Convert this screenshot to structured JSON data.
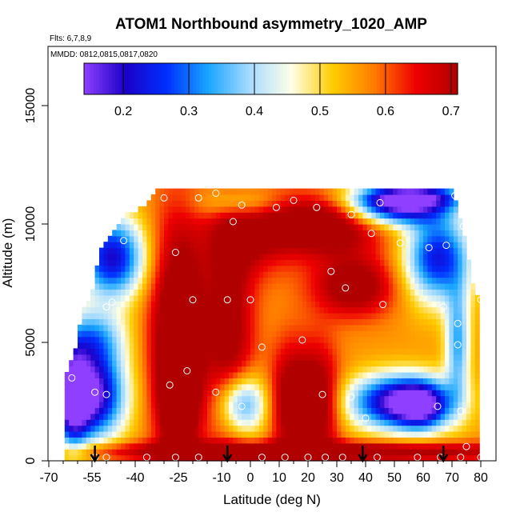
{
  "chart_data": {
    "type": "heatmap",
    "title": "ATOM1 Northbound asymmetry_1020_AMP",
    "flights_note": "Flts: 6,7,8,9",
    "dates_note": "MMDD: 0812,0815,0817,0820",
    "xlabel": "Latitude (deg N)",
    "ylabel": "Altitude (m)",
    "xlim": [
      -70,
      80
    ],
    "ylim": [
      0,
      17500
    ],
    "x_ticks": [
      "-70",
      "-55",
      "-40",
      "-25",
      "-10",
      "0",
      "10",
      "20",
      "30",
      "40",
      "50",
      "60",
      "70",
      "80"
    ],
    "x_tick_values": [
      -70,
      -55,
      -40,
      -25,
      -10,
      0,
      10,
      20,
      30,
      40,
      50,
      60,
      70,
      80
    ],
    "y_ticks": [
      "0",
      "5000",
      "10000",
      "15000"
    ],
    "y_tick_values": [
      0,
      5000,
      10000,
      15000
    ],
    "colorbar": {
      "min": 0.14,
      "max": 0.71,
      "ticks": [
        "0.2",
        "0.3",
        "0.4",
        "0.5",
        "0.6",
        "0.7"
      ],
      "tick_values": [
        0.2,
        0.3,
        0.4,
        0.5,
        0.6,
        0.7
      ],
      "colors": [
        "#8f3fff",
        "#1a00c8",
        "#0030ff",
        "#1aa6ff",
        "#a8dcff",
        "#ffffe8",
        "#ffcc00",
        "#ff7a00",
        "#ee0000",
        "#b10000"
      ]
    },
    "coverage_top_altitude": [
      {
        "lat": -65,
        "alt": 3200
      },
      {
        "lat": -61,
        "alt": 4500
      },
      {
        "lat": -58,
        "alt": 6300
      },
      {
        "lat": -55,
        "alt": 7000
      },
      {
        "lat": -52,
        "alt": 8800
      },
      {
        "lat": -48,
        "alt": 9600
      },
      {
        "lat": -44,
        "alt": 10200
      },
      {
        "lat": -38,
        "alt": 10600
      },
      {
        "lat": -32,
        "alt": 11300
      },
      {
        "lat": 70,
        "alt": 11300
      },
      {
        "lat": 72,
        "alt": 10500
      },
      {
        "lat": 74,
        "alt": 9500
      },
      {
        "lat": 76,
        "alt": 8300
      },
      {
        "lat": 78,
        "alt": 7000
      },
      {
        "lat": 80,
        "alt": 6500
      }
    ],
    "blobs": [
      {
        "lat": -25,
        "alt": 5500,
        "slat": 7,
        "salt": 3500,
        "v": 0.24
      },
      {
        "lat": -25,
        "alt": 2800,
        "slat": 4,
        "salt": 1600,
        "v": 0.25
      },
      {
        "lat": -7,
        "alt": 5500,
        "slat": 6,
        "salt": 3500,
        "v": 0.17
      },
      {
        "lat": 0,
        "alt": 9800,
        "slat": 10,
        "salt": 1300,
        "v": 0.14
      },
      {
        "lat": 25,
        "alt": 10000,
        "slat": 14,
        "salt": 900,
        "v": 0.24
      },
      {
        "lat": 36,
        "alt": 7400,
        "slat": 10,
        "salt": 900,
        "v": 0.2
      },
      {
        "lat": 24,
        "alt": 2500,
        "slat": 5,
        "salt": 1700,
        "v": 0.2
      },
      {
        "lat": 14,
        "alt": 2500,
        "slat": 5,
        "salt": 1700,
        "v": 0.2
      },
      {
        "lat": 20,
        "alt": 400,
        "slat": 60,
        "salt": 300,
        "v": 0.22
      },
      {
        "lat": -55,
        "alt": 2800,
        "slat": 8,
        "salt": 1300,
        "v": -0.42
      },
      {
        "lat": -62,
        "alt": 2600,
        "slat": 4,
        "salt": 1500,
        "v": -0.3
      },
      {
        "lat": -48,
        "alt": 8600,
        "slat": 8,
        "salt": 1200,
        "v": -0.35
      },
      {
        "lat": -3,
        "alt": 2400,
        "slat": 6,
        "salt": 900,
        "v": -0.27
      },
      {
        "lat": 52,
        "alt": 2500,
        "slat": 12,
        "salt": 800,
        "v": -0.42
      },
      {
        "lat": 60,
        "alt": 2300,
        "slat": 6,
        "salt": 700,
        "v": -0.2
      },
      {
        "lat": 65,
        "alt": 8600,
        "slat": 8,
        "salt": 1300,
        "v": -0.33
      },
      {
        "lat": 50,
        "alt": 10600,
        "slat": 12,
        "salt": 500,
        "v": -0.3
      },
      {
        "lat": 55,
        "alt": 11200,
        "slat": 14,
        "salt": 400,
        "v": -0.35
      },
      {
        "lat": 72,
        "alt": 5000,
        "slat": 3,
        "salt": 1600,
        "v": -0.22
      },
      {
        "lat": -3,
        "alt": 10900,
        "slat": 10,
        "salt": 500,
        "v": -0.15
      },
      {
        "lat": -55,
        "alt": 5200,
        "slat": 8,
        "salt": 900,
        "v": -0.2
      }
    ],
    "sample_points": [
      {
        "lat": -66,
        "alt": 3200
      },
      {
        "lat": -62,
        "alt": 3500
      },
      {
        "lat": -54,
        "alt": 2900
      },
      {
        "lat": -50,
        "alt": 2800
      },
      {
        "lat": -28,
        "alt": 3200
      },
      {
        "lat": -22,
        "alt": 3800
      },
      {
        "lat": -12,
        "alt": 2900
      },
      {
        "lat": 4,
        "alt": 4800
      },
      {
        "lat": 18,
        "alt": 5100
      },
      {
        "lat": 25,
        "alt": 2800
      },
      {
        "lat": 35,
        "alt": 2700
      },
      {
        "lat": 40,
        "alt": 1800
      },
      {
        "lat": 65,
        "alt": 2300
      },
      {
        "lat": 72,
        "alt": 4900
      },
      {
        "lat": 73,
        "alt": 2100
      },
      {
        "lat": -55,
        "alt": 8700
      },
      {
        "lat": -44,
        "alt": 9300
      },
      {
        "lat": -26,
        "alt": 8800
      },
      {
        "lat": -20,
        "alt": 6800
      },
      {
        "lat": -8,
        "alt": 6800
      },
      {
        "lat": 0,
        "alt": 6800
      },
      {
        "lat": 28,
        "alt": 8000
      },
      {
        "lat": 33,
        "alt": 7300
      },
      {
        "lat": 46,
        "alt": 6600
      },
      {
        "lat": 67,
        "alt": 6500
      },
      {
        "lat": 72,
        "alt": 5800
      },
      {
        "lat": 80,
        "alt": 6800
      },
      {
        "lat": -48,
        "alt": 6700
      },
      {
        "lat": -50,
        "alt": 6500
      },
      {
        "lat": -30,
        "alt": 11100
      },
      {
        "lat": -18,
        "alt": 11100
      },
      {
        "lat": -12,
        "alt": 11300
      },
      {
        "lat": -6,
        "alt": 10100
      },
      {
        "lat": 9,
        "alt": 10700
      },
      {
        "lat": 15,
        "alt": 11000
      },
      {
        "lat": 23,
        "alt": 10700
      },
      {
        "lat": 35,
        "alt": 10400
      },
      {
        "lat": 42,
        "alt": 9600
      },
      {
        "lat": 52,
        "alt": 9200
      },
      {
        "lat": 62,
        "alt": 9000
      },
      {
        "lat": 68,
        "alt": 9100
      },
      {
        "lat": 71,
        "alt": 11200
      },
      {
        "lat": 74,
        "alt": 9900
      },
      {
        "lat": 45,
        "alt": 10900
      },
      {
        "lat": -3,
        "alt": 2300
      },
      {
        "lat": -68,
        "alt": 150
      },
      {
        "lat": -54,
        "alt": 150
      },
      {
        "lat": -50,
        "alt": 150
      },
      {
        "lat": -36,
        "alt": 150
      },
      {
        "lat": -26,
        "alt": 150
      },
      {
        "lat": -18,
        "alt": 150
      },
      {
        "lat": 4,
        "alt": 150
      },
      {
        "lat": 12,
        "alt": 150
      },
      {
        "lat": 20,
        "alt": 150
      },
      {
        "lat": 26,
        "alt": 150
      },
      {
        "lat": 32,
        "alt": 150
      },
      {
        "lat": 44,
        "alt": 150
      },
      {
        "lat": 58,
        "alt": 150
      },
      {
        "lat": 66,
        "alt": 150
      },
      {
        "lat": 73,
        "alt": 150
      },
      {
        "lat": 75,
        "alt": 600
      },
      {
        "lat": 80,
        "alt": 150
      },
      {
        "lat": -3,
        "alt": 10800
      }
    ],
    "arrows_lat": [
      -54,
      -8,
      39,
      67
    ]
  }
}
